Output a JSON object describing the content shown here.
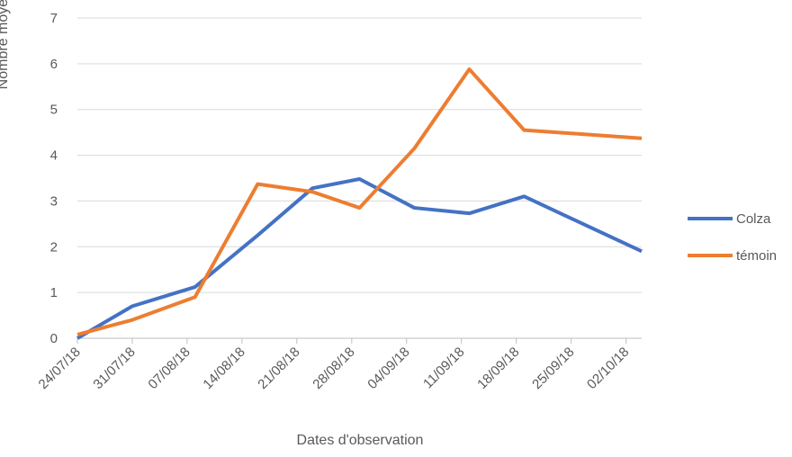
{
  "chart_data": {
    "type": "line",
    "x_label": "Dates d'observation",
    "y_label": "Nombre moyen de punaises piégées",
    "x": [
      "24/07/18",
      "31/07/18",
      "08/08/18",
      "16/08/18",
      "23/08/18",
      "29/08/18",
      "05/09/18",
      "12/09/18",
      "19/09/18",
      "04/10/18"
    ],
    "series": [
      {
        "name": "Colza",
        "color": "#4472c4",
        "values": [
          0,
          0.7,
          1.12,
          2.25,
          3.28,
          3.48,
          2.85,
          2.73,
          3.1,
          1.9
        ]
      },
      {
        "name": "témoin",
        "color": "#ed7d31",
        "values": [
          0.08,
          0.4,
          0.9,
          3.37,
          3.2,
          2.85,
          4.15,
          5.88,
          4.55,
          4.37
        ]
      }
    ],
    "xlim": [
      "24/07/18",
      "04/10/18"
    ],
    "xticks": [
      "24/07/18",
      "31/07/18",
      "07/08/18",
      "14/08/18",
      "21/08/18",
      "28/08/18",
      "04/09/18",
      "11/09/18",
      "18/09/18",
      "25/09/18",
      "02/10/18"
    ],
    "ylim": [
      0,
      7
    ],
    "yticks": [
      0,
      1,
      2,
      3,
      4,
      5,
      6,
      7
    ],
    "grid": true,
    "legend": "right"
  }
}
